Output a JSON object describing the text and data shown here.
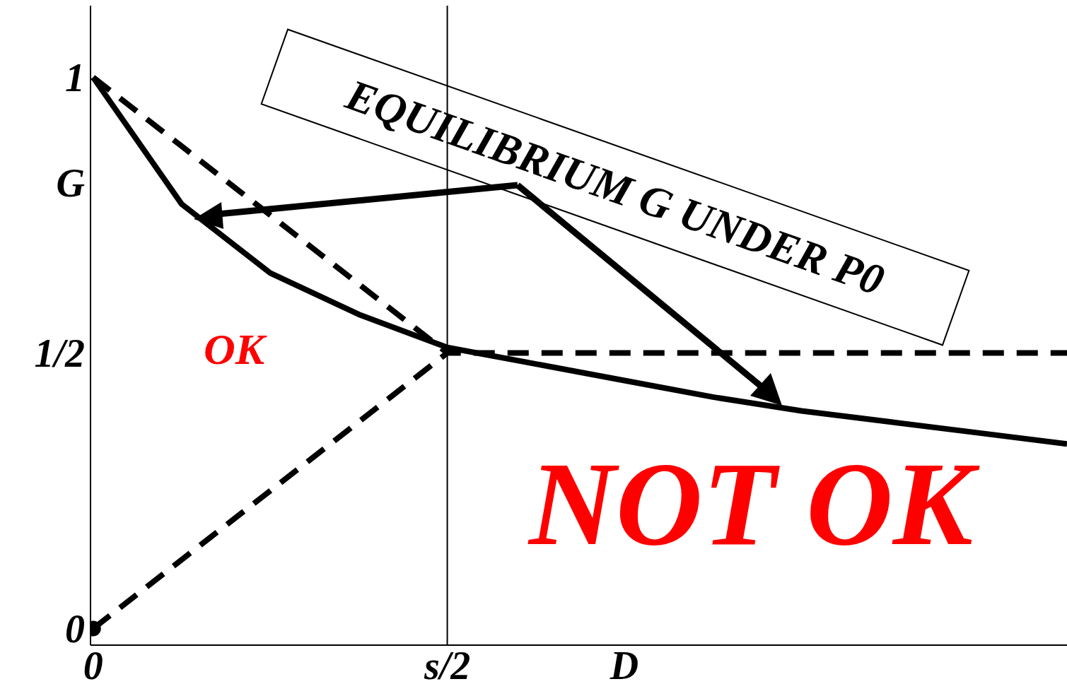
{
  "chart_data": {
    "type": "line",
    "categories": [
      "0",
      null,
      null,
      null,
      "s/2",
      null,
      "D",
      null,
      null,
      null,
      null,
      null
    ],
    "ylim": [
      -0.03,
      1.13
    ],
    "yticks": [
      0,
      {
        "value": 0.5,
        "label": "1/2"
      },
      {
        "value": 0.81,
        "label": "G"
      },
      1
    ],
    "series": [
      {
        "color": "#000000",
        "line_style": "solid",
        "values": [
          1,
          0.77,
          0.645,
          0.57,
          0.51,
          0.48,
          0.45,
          0.42,
          0.395,
          0.375,
          0.355,
          0.335
        ]
      },
      {
        "color": "#000000",
        "line_style": "dashed",
        "values": [
          1,
          0.875,
          0.75,
          0.625,
          0.5,
          null,
          null,
          null,
          null,
          null,
          null,
          null
        ]
      },
      {
        "color": "#000000",
        "line_style": "dashed",
        "values": [
          0,
          0.125,
          0.25,
          0.375,
          0.5,
          0.5,
          0.5,
          0.5,
          0.5,
          0.5,
          0.5,
          0.5
        ]
      },
      {
        "type": "scatter",
        "color": "#000000",
        "marker": "circle",
        "values": [
          0,
          null,
          null,
          null,
          null,
          null,
          null,
          null,
          null,
          null,
          null,
          null
        ]
      }
    ],
    "ref_lines": [
      {
        "axis": "x",
        "value": "s/2",
        "color": "#000000"
      }
    ],
    "annotations": [
      "EQUILIBRIUM G UNDER P0",
      "OK",
      "NOT OK"
    ]
  }
}
